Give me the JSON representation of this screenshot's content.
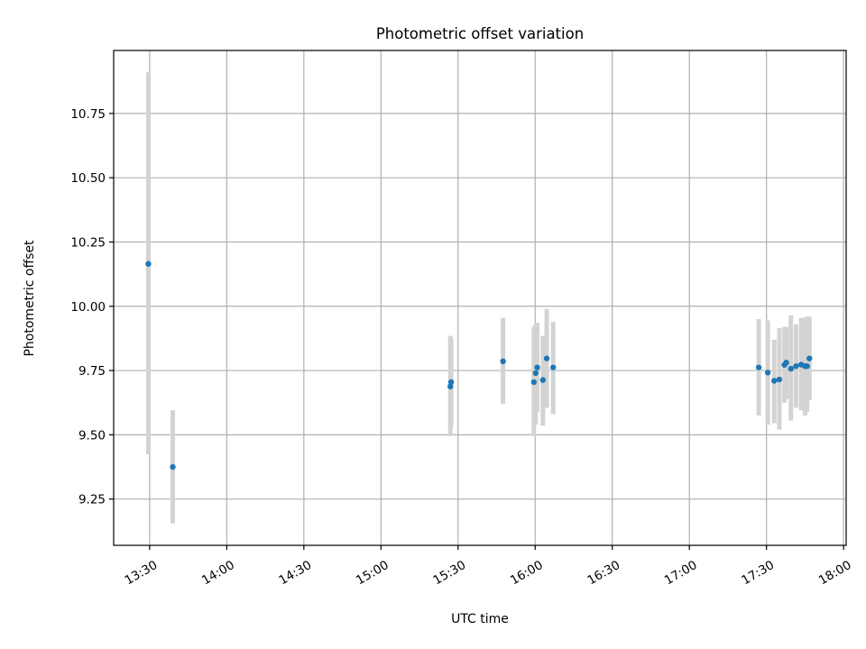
{
  "chart_data": {
    "type": "scatter",
    "title": "Photometric offset variation",
    "xlabel": "UTC time",
    "ylabel": "Photometric offset",
    "xlim": [
      "13:16",
      "18:01"
    ],
    "ylim": [
      9.07,
      10.995
    ],
    "x_ticks": [
      "13:30",
      "14:00",
      "14:30",
      "15:00",
      "15:30",
      "16:00",
      "16:30",
      "17:00",
      "17:30",
      "18:00"
    ],
    "y_ticks": [
      "9.25",
      "9.50",
      "9.75",
      "10.00",
      "10.25",
      "10.50",
      "10.75"
    ],
    "grid": true,
    "colors": {
      "points": "#1f77b4",
      "errorbars": "#d3d3d3",
      "grid": "#b0b0b0"
    },
    "points": [
      {
        "x": "13:29.5",
        "y": 10.165,
        "lo": 9.425,
        "hi": 10.91
      },
      {
        "x": "13:39.0",
        "y": 9.375,
        "lo": 9.155,
        "hi": 9.595
      },
      {
        "x": "15:27.0",
        "y": 9.688,
        "lo": 9.495,
        "hi": 9.885
      },
      {
        "x": "15:27.3",
        "y": 9.705,
        "lo": 9.535,
        "hi": 9.875
      },
      {
        "x": "15:47.5",
        "y": 9.786,
        "lo": 9.62,
        "hi": 9.955
      },
      {
        "x": "15:59.5",
        "y": 9.705,
        "lo": 9.495,
        "hi": 9.92
      },
      {
        "x": "16:00.2",
        "y": 9.74,
        "lo": 9.54,
        "hi": 9.93
      },
      {
        "x": "16:00.8",
        "y": 9.762,
        "lo": 9.59,
        "hi": 9.935
      },
      {
        "x": "16:03.0",
        "y": 9.713,
        "lo": 9.535,
        "hi": 9.885
      },
      {
        "x": "16:04.5",
        "y": 9.797,
        "lo": 9.605,
        "hi": 9.99
      },
      {
        "x": "16:07.0",
        "y": 9.762,
        "lo": 9.58,
        "hi": 9.94
      },
      {
        "x": "17:27.0",
        "y": 9.762,
        "lo": 9.575,
        "hi": 9.95
      },
      {
        "x": "17:30.5",
        "y": 9.742,
        "lo": 9.54,
        "hi": 9.945
      },
      {
        "x": "17:33.0",
        "y": 9.71,
        "lo": 9.545,
        "hi": 9.87
      },
      {
        "x": "17:35.0",
        "y": 9.715,
        "lo": 9.52,
        "hi": 9.915
      },
      {
        "x": "17:37.0",
        "y": 9.772,
        "lo": 9.625,
        "hi": 9.92
      },
      {
        "x": "17:37.7",
        "y": 9.781,
        "lo": 9.64,
        "hi": 9.92
      },
      {
        "x": "17:39.5",
        "y": 9.757,
        "lo": 9.555,
        "hi": 9.965
      },
      {
        "x": "17:41.5",
        "y": 9.767,
        "lo": 9.605,
        "hi": 9.93
      },
      {
        "x": "17:43.5",
        "y": 9.773,
        "lo": 9.595,
        "hi": 9.955
      },
      {
        "x": "17:45.0",
        "y": 9.767,
        "lo": 9.575,
        "hi": 9.955
      },
      {
        "x": "17:45.8",
        "y": 9.767,
        "lo": 9.59,
        "hi": 9.96
      },
      {
        "x": "17:46.7",
        "y": 9.797,
        "lo": 9.635,
        "hi": 9.96
      }
    ]
  }
}
